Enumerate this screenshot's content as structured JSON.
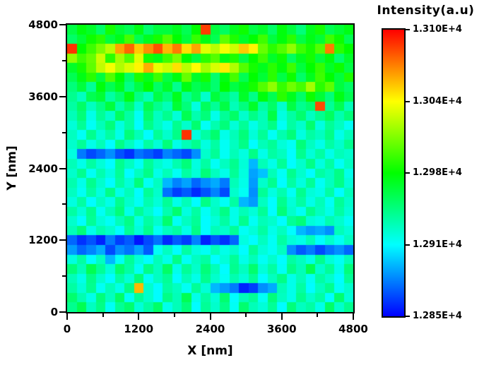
{
  "chart_data": {
    "type": "heatmap",
    "title": "",
    "xlabel": "X [nm]",
    "ylabel": "Y [nm]",
    "x_range": [
      0,
      4800
    ],
    "y_range": [
      0,
      4800
    ],
    "x_ticks": [
      0,
      1200,
      2400,
      3600,
      4800
    ],
    "y_ticks": [
      0,
      1200,
      2400,
      3600,
      4800
    ],
    "x_minor_ticks": [
      600,
      1800,
      3000,
      4200
    ],
    "y_minor_ticks": [
      600,
      1800,
      3000,
      4200
    ],
    "grid_size": [
      30,
      30
    ],
    "value_range": [
      12850,
      13100
    ],
    "colorbar": {
      "title": "Intensity(a.u)",
      "tick_labels_top_to_bottom": [
        "1.310E+4",
        "1.304E+4",
        "1.298E+4",
        "1.291E+4",
        "1.285E+4"
      ],
      "colormap_stops": [
        "#0000ff",
        "#00ffff",
        "#00ff00",
        "#ffff00",
        "#ff8000",
        "#ff0000"
      ],
      "colormap_positions": [
        0,
        0.25,
        0.5,
        0.75,
        0.875,
        1
      ]
    },
    "values_rows_top_to_bottom": [
      [
        12958,
        12972,
        12965,
        12950,
        12980,
        12962,
        12955,
        12970,
        12948,
        12960,
        12960,
        12968,
        12955,
        12975,
        13085,
        12960,
        12952,
        12968,
        12978,
        12958,
        12965,
        12950,
        12972,
        12960,
        12945,
        12968,
        12980,
        12955,
        12962,
        12970
      ],
      [
        12950,
        12962,
        12978,
        12985,
        12960,
        12970,
        12992,
        12955,
        12968,
        12980,
        12995,
        12975,
        12960,
        12988,
        12970,
        12955,
        12998,
        12982,
        12965,
        12975,
        12990,
        12960,
        12972,
        12985,
        12958,
        12970,
        12962,
        12990,
        12978,
        12955
      ],
      [
        13088,
        12975,
        12990,
        13005,
        13020,
        13060,
        13075,
        13050,
        13065,
        13080,
        13055,
        13070,
        13045,
        13060,
        13030,
        13020,
        13035,
        13025,
        13050,
        13040,
        13000,
        12985,
        12995,
        13010,
        12990,
        12980,
        12995,
        13070,
        12985,
        12975
      ],
      [
        13010,
        12990,
        13000,
        13025,
        12985,
        13015,
        12995,
        13030,
        12980,
        12970,
        12990,
        13005,
        12975,
        12960,
        12985,
        12995,
        12970,
        12982,
        12958,
        12975,
        12990,
        12965,
        12978,
        12952,
        12968,
        12980,
        12960,
        12972,
        12948,
        12965
      ],
      [
        12965,
        12980,
        12998,
        13022,
        13035,
        13018,
        13028,
        13040,
        13058,
        13032,
        13025,
        13045,
        13020,
        13038,
        13015,
        13028,
        13042,
        13018,
        12995,
        12980,
        12968,
        12985,
        12972,
        12990,
        12960,
        12975,
        12988,
        12965,
        12978,
        12958
      ],
      [
        12955,
        12970,
        12985,
        12960,
        12995,
        12975,
        12950,
        12982,
        12968,
        12990,
        12958,
        12972,
        13000,
        12965,
        12980,
        12948,
        12970,
        12992,
        12955,
        12975,
        12962,
        12985,
        12958,
        12978,
        12950,
        12968,
        12990,
        12975,
        12960,
        12982
      ],
      [
        12945,
        12960,
        12938,
        12972,
        12955,
        12968,
        12942,
        12958,
        12975,
        12950,
        12965,
        12940,
        12970,
        12955,
        12962,
        12948,
        12975,
        12958,
        12968,
        12980,
        12995,
        13010,
        12988,
        13002,
        12992,
        13015,
        12985,
        12998,
        12960,
        12950
      ],
      [
        12940,
        12928,
        12955,
        12962,
        12935,
        12948,
        12970,
        12942,
        12930,
        12958,
        12945,
        12968,
        12938,
        12952,
        12925,
        12960,
        12948,
        12935,
        12965,
        12942,
        12972,
        12955,
        12985,
        12968,
        12950,
        12978,
        12962,
        12945,
        12970,
        12955
      ],
      [
        12935,
        12950,
        12928,
        12942,
        12960,
        12932,
        12948,
        12925,
        12955,
        12940,
        12930,
        12962,
        12945,
        12920,
        12952,
        12938,
        12958,
        12930,
        12944,
        12965,
        12935,
        12950,
        12925,
        12958,
        12940,
        12948,
        13082,
        12938,
        12955,
        12930
      ],
      [
        12930,
        12945,
        12918,
        12938,
        12925,
        12952,
        12935,
        12915,
        12948,
        12928,
        12940,
        12922,
        12955,
        12932,
        12945,
        12918,
        12938,
        12950,
        12925,
        12942,
        12930,
        12958,
        12920,
        12935,
        12948,
        12928,
        12940,
        12952,
        12932,
        12945
      ],
      [
        12922,
        12938,
        12915,
        12930,
        12945,
        12920,
        12935,
        12912,
        12942,
        12928,
        12918,
        12940,
        12925,
        12948,
        12915,
        12932,
        12945,
        12922,
        12938,
        12918,
        12930,
        12942,
        12915,
        12935,
        12925,
        12948,
        12920,
        12938,
        12928,
        12915
      ],
      [
        12928,
        12915,
        12940,
        12922,
        12935,
        12918,
        12945,
        12930,
        12912,
        12938,
        12925,
        12942,
        13088,
        12920,
        12935,
        12948,
        12918,
        12930,
        12945,
        12922,
        12938,
        12915,
        12932,
        12945,
        12920,
        12935,
        12928,
        12942,
        12918,
        12930
      ],
      [
        12925,
        12938,
        12918,
        12930,
        12912,
        12942,
        12928,
        12915,
        12935,
        12922,
        12945,
        12918,
        12930,
        12940,
        12920,
        12935,
        12915,
        12928,
        12942,
        12912,
        12930,
        12938,
        12922,
        12915,
        12945,
        12928,
        12918,
        12935,
        12925,
        12940
      ],
      [
        12920,
        12880,
        12868,
        12875,
        12885,
        12870,
        12862,
        12878,
        12872,
        12865,
        12882,
        12875,
        12868,
        12885,
        12925,
        12938,
        12915,
        12930,
        12920,
        12942,
        12918,
        12935,
        12928,
        12912,
        12940,
        12922,
        12935,
        12918,
        12930,
        12925
      ],
      [
        12930,
        12918,
        12935,
        12922,
        12912,
        12940,
        12928,
        12915,
        12938,
        12925,
        12918,
        12932,
        12945,
        12920,
        12935,
        12915,
        12928,
        12940,
        12922,
        12895,
        12930,
        12918,
        12938,
        12912,
        12925,
        12942,
        12920,
        12935,
        12915,
        12928
      ],
      [
        12925,
        12940,
        12915,
        12932,
        12920,
        12938,
        12912,
        12928,
        12942,
        12918,
        12930,
        12915,
        12935,
        12922,
        12945,
        12928,
        12918,
        12938,
        12920,
        12890,
        12898,
        12930,
        12915,
        12940,
        12925,
        12912,
        12935,
        12928,
        12942,
        12918
      ],
      [
        12932,
        12918,
        12940,
        12925,
        12912,
        12935,
        12922,
        12945,
        12915,
        12928,
        12895,
        12882,
        12890,
        12875,
        12885,
        12892,
        12880,
        12930,
        12918,
        12888,
        12925,
        12940,
        12912,
        12935,
        12920,
        12938,
        12915,
        12928,
        12942,
        12922
      ],
      [
        12928,
        12915,
        12935,
        12920,
        12942,
        12918,
        12930,
        12912,
        12938,
        12925,
        12878,
        12865,
        12872,
        12860,
        12870,
        12882,
        12868,
        12925,
        12915,
        12885,
        12938,
        12920,
        12932,
        12915,
        12940,
        12922,
        12918,
        12935,
        12912,
        12930
      ],
      [
        12920,
        12935,
        12912,
        12928,
        12918,
        12940,
        12925,
        12915,
        12932,
        12922,
        12938,
        12918,
        12930,
        12912,
        12942,
        12925,
        12915,
        12935,
        12895,
        12888,
        12928,
        12912,
        12940,
        12922,
        12935,
        12918,
        12930,
        12915,
        12938,
        12925
      ],
      [
        12935,
        12922,
        12940,
        12915,
        12930,
        12945,
        12918,
        12938,
        12925,
        12912,
        12932,
        12948,
        12920,
        12935,
        12915,
        12928,
        12942,
        12918,
        12930,
        12922,
        12938,
        12912,
        12945,
        12925,
        12915,
        12940,
        12928,
        12918,
        12935,
        12922
      ],
      [
        12925,
        12912,
        12938,
        12922,
        12915,
        12930,
        12942,
        12918,
        12935,
        12925,
        12948,
        12915,
        12928,
        12938,
        12912,
        12922,
        12935,
        12918,
        12940,
        12915,
        12930,
        12925,
        12912,
        12938,
        12945,
        12922,
        12918,
        12932,
        12925,
        12915
      ],
      [
        12930,
        12945,
        12918,
        12932,
        12925,
        12912,
        12938,
        12922,
        12940,
        12915,
        12928,
        12935,
        12918,
        12942,
        12912,
        12930,
        12925,
        12938,
        12915,
        12922,
        12935,
        12918,
        12928,
        12912,
        12895,
        12888,
        12892,
        12885,
        12930,
        12922
      ],
      [
        12875,
        12862,
        12870,
        12858,
        12880,
        12865,
        12872,
        12855,
        12868,
        12878,
        12860,
        12872,
        12865,
        12882,
        12858,
        12870,
        12862,
        12875,
        12920,
        12912,
        12928,
        12915,
        12935,
        12922,
        12918,
        12930,
        12912,
        12925,
        12915,
        12928
      ],
      [
        12888,
        12875,
        12882,
        12892,
        12868,
        12885,
        12878,
        12890,
        12872,
        12915,
        12928,
        12912,
        12935,
        12920,
        12915,
        12930,
        12918,
        12925,
        12912,
        12938,
        12922,
        12915,
        12928,
        12885,
        12872,
        12880,
        12868,
        12878,
        12885,
        12875
      ],
      [
        12920,
        12935,
        12912,
        12928,
        12895,
        12915,
        12938,
        12922,
        12912,
        12930,
        12918,
        12942,
        12915,
        12928,
        12935,
        12912,
        12922,
        12938,
        12918,
        12930,
        12915,
        12925,
        12912,
        12935,
        12928,
        12918,
        12940,
        12922,
        12915,
        12930
      ],
      [
        12945,
        12930,
        12955,
        12938,
        12922,
        12948,
        12935,
        12915,
        12942,
        12928,
        12950,
        12918,
        12938,
        12925,
        12945,
        12930,
        12912,
        12940,
        12928,
        12948,
        12922,
        12935,
        12915,
        12942,
        12930,
        12955,
        12925,
        12938,
        12918,
        12945
      ],
      [
        12930,
        12918,
        12942,
        12925,
        12912,
        12935,
        12922,
        12945,
        12915,
        12928,
        12938,
        12912,
        12930,
        12918,
        12940,
        12925,
        12915,
        12932,
        12922,
        12938,
        12912,
        12928,
        12942,
        12918,
        12930,
        12915,
        12935,
        12925,
        12912,
        12938
      ],
      [
        12935,
        12922,
        12940,
        12915,
        12930,
        12918,
        12942,
        13055,
        12925,
        12912,
        12935,
        12928,
        12915,
        12938,
        12922,
        12895,
        12888,
        12880,
        12858,
        12865,
        12885,
        12892,
        12930,
        12918,
        12935,
        12912,
        12928,
        12940,
        12915,
        12925
      ],
      [
        12948,
        12932,
        12918,
        12945,
        12928,
        12950,
        12915,
        12938,
        12925,
        12912,
        12942,
        12930,
        12955,
        12918,
        12935,
        12922,
        12948,
        12912,
        12930,
        12938,
        12915,
        12945,
        12928,
        12918,
        12940,
        12925,
        12935,
        12912,
        12948,
        12922
      ],
      [
        12940,
        12955,
        12928,
        12942,
        12915,
        12938,
        12948,
        12922,
        12935,
        12950,
        12918,
        12930,
        12945,
        12912,
        12938,
        12925,
        12942,
        12915,
        12948,
        12930,
        12922,
        12938,
        12912,
        12945,
        12928,
        12935,
        12918,
        12950,
        12925,
        12940
      ]
    ]
  }
}
